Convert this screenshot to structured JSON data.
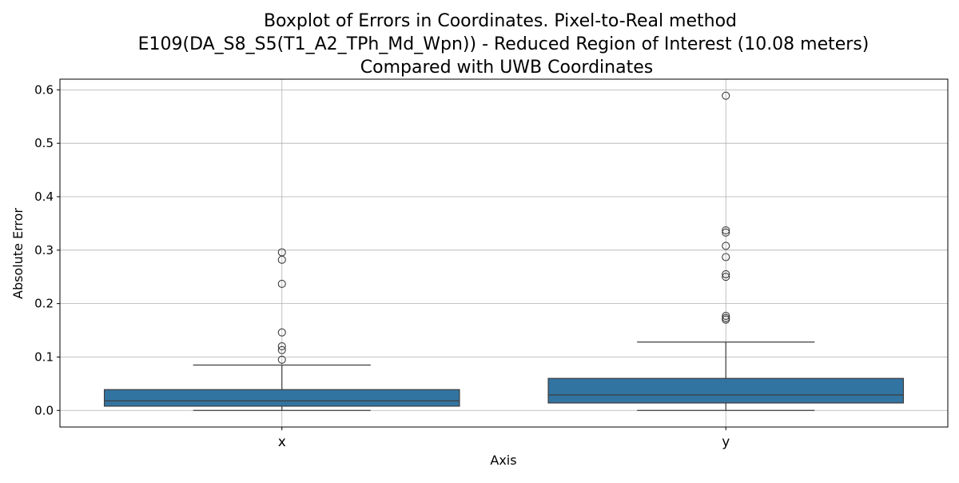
{
  "chart_data": {
    "type": "box",
    "title_lines": [
      "Boxplot of Errors in Coordinates. Pixel-to-Real method",
      "E109(DA_S8_S5(T1_A2_TPh_Md_Wpn)) - Reduced Region of Interest (10.08 meters)",
      "Compared with UWB Coordinates"
    ],
    "xlabel": "Axis",
    "ylabel": "Absolute Error",
    "categories": [
      "x",
      "y"
    ],
    "ylim": [
      -0.031,
      0.62
    ],
    "yticks": [
      "0.0",
      "0.1",
      "0.2",
      "0.3",
      "0.4",
      "0.5",
      "0.6"
    ],
    "grid": true,
    "box_color": "#3274a1",
    "boxes": [
      {
        "category": "x",
        "whisker_low": 0.0,
        "q1": 0.008,
        "median": 0.018,
        "q3": 0.039,
        "whisker_high": 0.085,
        "outliers": [
          0.095,
          0.113,
          0.12,
          0.146,
          0.237,
          0.282,
          0.296
        ]
      },
      {
        "category": "y",
        "whisker_low": 0.0,
        "q1": 0.014,
        "median": 0.029,
        "q3": 0.06,
        "whisker_high": 0.128,
        "outliers": [
          0.17,
          0.173,
          0.177,
          0.25,
          0.255,
          0.287,
          0.308,
          0.333,
          0.337,
          0.589
        ]
      }
    ]
  }
}
